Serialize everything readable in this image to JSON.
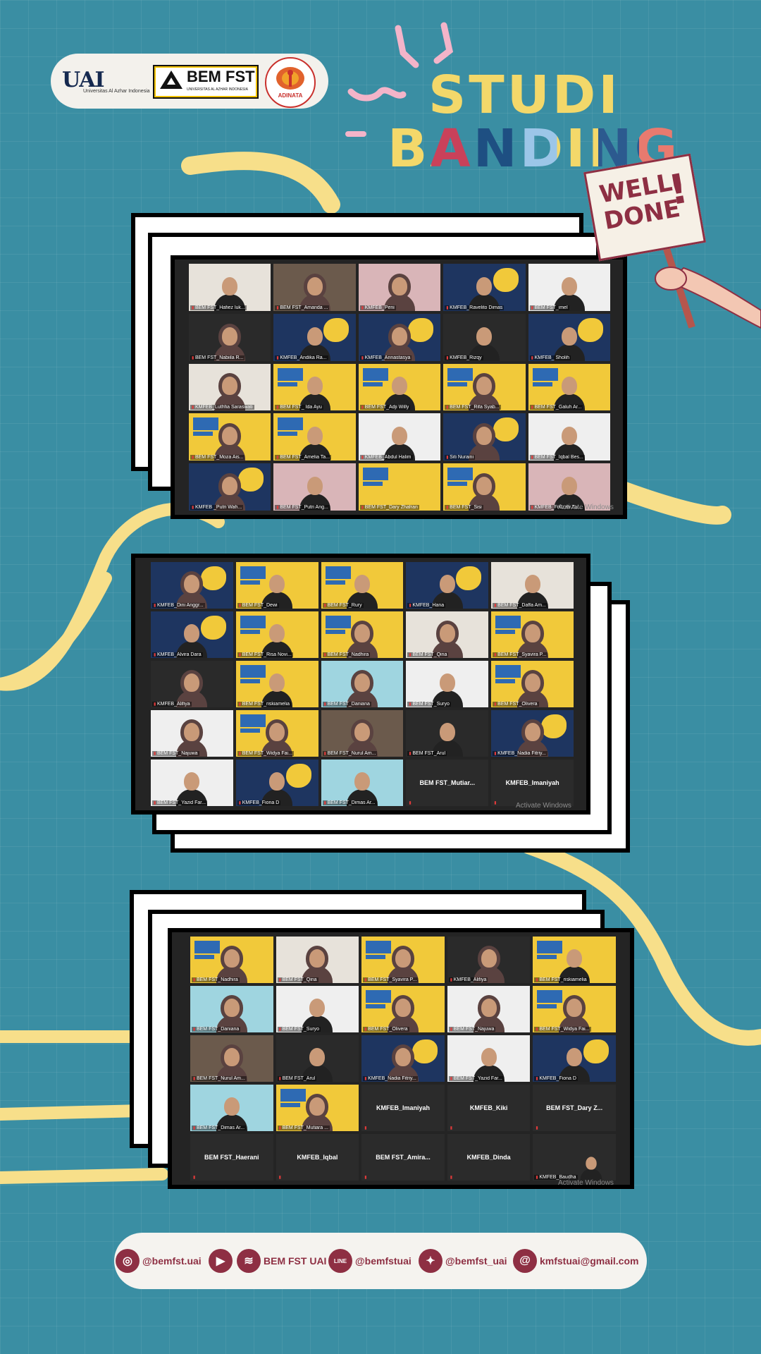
{
  "logos": {
    "uai_mark": "UAI",
    "uai_sub": "Universitas Al Azhar Indonesia",
    "bem_text": "BEM FST",
    "bem_sub": "UNIVERSITAS AL AZHAR INDONESIA",
    "adinata": "ADINATA"
  },
  "title": {
    "line1": "STUDI",
    "line2": "BANDING"
  },
  "sign": {
    "line1": "WELL",
    "line2": "DONE",
    "mark": "!"
  },
  "colors": {
    "background": "#3a8ea3",
    "accent": "#8e2f43",
    "squiggle": "#f7df8a",
    "tile_yellow": "#f1c93a"
  },
  "screens": [
    {
      "activate": "Activate Windows",
      "tiles": [
        {
          "name": "BEM FST_Hafiez luk...",
          "style": "light",
          "person": "plain"
        },
        {
          "name": "BEM FST_Amanda ...",
          "style": "brown",
          "person": "hijab"
        },
        {
          "name": "KMFEB_Peni",
          "style": "pink",
          "person": "hijab"
        },
        {
          "name": "KMFEB_Ravelito Dimas",
          "style": "navy",
          "person": "plain"
        },
        {
          "name": "BEM FST_imel",
          "style": "white",
          "person": "plain"
        },
        {
          "name": "BEM FST_Nabiila R...",
          "style": "dark",
          "person": "hijab"
        },
        {
          "name": "KMFEB_Andika Ra...",
          "style": "navy",
          "person": "plain"
        },
        {
          "name": "KMFEB_Annastasya",
          "style": "navy",
          "person": "hijab"
        },
        {
          "name": "KMFEB_Rizqy",
          "style": "dark",
          "person": "plain"
        },
        {
          "name": "KMFEB_ Sholih",
          "style": "navy",
          "person": "plain"
        },
        {
          "name": "KMFEB_Luthfia Saraswati",
          "style": "light",
          "person": "hijab"
        },
        {
          "name": "BEM FST_ Ida Ayu",
          "style": "yellow",
          "person": "plain"
        },
        {
          "name": "BEM FST_Adji Willy",
          "style": "yellow",
          "person": "plain"
        },
        {
          "name": "BEM FST_Rifa Syab...",
          "style": "yellow",
          "person": "hijab"
        },
        {
          "name": "BEM FST_Galuh Ar...",
          "style": "yellow",
          "person": "plain"
        },
        {
          "name": "BEM FST_Moza Ais...",
          "style": "yellow",
          "person": "hijab"
        },
        {
          "name": "BEM FST_Amelia Ta...",
          "style": "yellow",
          "person": "plain"
        },
        {
          "name": "KMFEB_Abdul Halim",
          "style": "white",
          "person": "plain"
        },
        {
          "name": "Siti Nuraini",
          "style": "navy",
          "person": "hijab"
        },
        {
          "name": "BEM FST_Iqbal Bes...",
          "style": "white",
          "person": "plain"
        },
        {
          "name": "KMFEB _Putri Wah...",
          "style": "navy",
          "person": "hijab"
        },
        {
          "name": "BEM FST_Putri Ang...",
          "style": "pink",
          "person": "plain"
        },
        {
          "name": "BEM FST_Dary Zhafran",
          "style": "yellow",
          "person": "none"
        },
        {
          "name": "BEM FST_Sisi",
          "style": "yellow",
          "person": "hijab"
        },
        {
          "name": "KMFEB_Fildzah Zar...",
          "style": "pink",
          "person": "plain"
        }
      ]
    },
    {
      "activate": "Activate Windows",
      "tiles": [
        {
          "name": "KMFEB_Dini Anggr...",
          "style": "navy",
          "person": "hijab"
        },
        {
          "name": "BEM FST_Dewi",
          "style": "yellow",
          "person": "plain"
        },
        {
          "name": "BEM FST_Rury",
          "style": "yellow",
          "person": "plain"
        },
        {
          "name": "KMFEB_Hana",
          "style": "navy",
          "person": "plain"
        },
        {
          "name": "BEM FST_Daffa Am...",
          "style": "light",
          "person": "plain"
        },
        {
          "name": "KMFEB_Alvira Dara",
          "style": "navy",
          "person": "plain"
        },
        {
          "name": "BEM FST_Risa Novi...",
          "style": "yellow",
          "person": "plain"
        },
        {
          "name": "BEM FST_Nadhira",
          "style": "yellow",
          "person": "hijab"
        },
        {
          "name": "BEM FST_Qina",
          "style": "light",
          "person": "hijab"
        },
        {
          "name": "BEM FST_Syavira P...",
          "style": "yellow",
          "person": "hijab"
        },
        {
          "name": "KMFEB_Alifiya",
          "style": "dark",
          "person": "hijab"
        },
        {
          "name": "BEM FST_riskiamelia",
          "style": "yellow",
          "person": "plain"
        },
        {
          "name": "BEM FST_Daniana",
          "style": "sky",
          "person": "hijab"
        },
        {
          "name": "BEM FST_Suryo",
          "style": "white",
          "person": "plain"
        },
        {
          "name": "BEM FST_Olivera",
          "style": "yellow",
          "person": "hijab"
        },
        {
          "name": "BEM FST_Najuwa",
          "style": "white",
          "person": "hijab"
        },
        {
          "name": "BEM FST_Widya Fai...",
          "style": "yellow",
          "person": "hijab"
        },
        {
          "name": "BEM FST_Nurul Am...",
          "style": "brown",
          "person": "hijab"
        },
        {
          "name": "BEM FST_Arul",
          "style": "dark",
          "person": "plain"
        },
        {
          "name": "KMFEB_Nadia Fitriy...",
          "style": "navy",
          "person": "hijab"
        },
        {
          "name": "BEM FST_Yazid Far...",
          "style": "white",
          "person": "plain"
        },
        {
          "name": "KMFEB_Fiona D",
          "style": "navy",
          "person": "plain"
        },
        {
          "name": "BEM FST_Dimas Ar...",
          "style": "sky",
          "person": "plain"
        },
        {
          "name": "BEM FST_Mutiar...",
          "style": "empty",
          "person": "none",
          "center": true
        },
        {
          "name": "KMFEB_Imaniyah",
          "style": "empty",
          "person": "none",
          "center": true
        }
      ]
    },
    {
      "activate": "Activate Windows",
      "tiles": [
        {
          "name": "BEM FST_Nadhira",
          "style": "yellow",
          "person": "hijab"
        },
        {
          "name": "BEM FST_Qina",
          "style": "light",
          "person": "hijab"
        },
        {
          "name": "BEM FST_Syavira P...",
          "style": "yellow",
          "person": "hijab"
        },
        {
          "name": "KMFEB_Alifiya",
          "style": "dark",
          "person": "hijab"
        },
        {
          "name": "BEM FST_riskiamelia",
          "style": "yellow",
          "person": "plain"
        },
        {
          "name": "BEM FST_Daniana",
          "style": "sky",
          "person": "hijab"
        },
        {
          "name": "BEM FST_Suryo",
          "style": "white",
          "person": "plain"
        },
        {
          "name": "BEM FST_Olivera",
          "style": "yellow",
          "person": "hijab"
        },
        {
          "name": "BEM FST_Najuwa",
          "style": "white",
          "person": "hijab"
        },
        {
          "name": "BEM FST_Widya Fai...",
          "style": "yellow",
          "person": "hijab"
        },
        {
          "name": "BEM FST_Nurul Am...",
          "style": "brown",
          "person": "hijab"
        },
        {
          "name": "BEM FST_Arul",
          "style": "dark",
          "person": "plain"
        },
        {
          "name": "KMFEB_Nadia Fitriy...",
          "style": "navy",
          "person": "hijab"
        },
        {
          "name": "BEM FST_Yazid Far...",
          "style": "white",
          "person": "plain"
        },
        {
          "name": "KMFEB_Fiona D",
          "style": "navy",
          "person": "plain"
        },
        {
          "name": "BEM FST_Dimas Ar...",
          "style": "sky",
          "person": "plain"
        },
        {
          "name": "BEM FST_Mutiara ...",
          "style": "yellow",
          "person": "hijab"
        },
        {
          "name": "KMFEB_Imaniyah",
          "style": "empty",
          "person": "none",
          "center": true
        },
        {
          "name": "KMFEB_Kiki",
          "style": "empty",
          "person": "none",
          "center": true
        },
        {
          "name": "BEM FST_Dary Z...",
          "style": "empty",
          "person": "none",
          "center": true
        },
        {
          "name": "BEM FST_Haerani",
          "style": "empty",
          "person": "none",
          "center": true
        },
        {
          "name": "KMFEB_Iqbal",
          "style": "empty",
          "person": "none",
          "center": true
        },
        {
          "name": "BEM FST_Amira...",
          "style": "empty",
          "person": "none",
          "center": true
        },
        {
          "name": "KMFEB_Dinda",
          "style": "empty",
          "person": "none",
          "center": true
        },
        {
          "name": "KMFEB_Baudha",
          "style": "empty",
          "person": "small"
        }
      ]
    }
  ],
  "footer": [
    {
      "icon": "instagram-icon",
      "glyph": "◎",
      "text": "@bemfst.uai"
    },
    {
      "icon": "youtube-icon",
      "glyph": "▶",
      "text": ""
    },
    {
      "icon": "spotify-icon",
      "glyph": "≋",
      "text": "BEM FST UAI"
    },
    {
      "icon": "line-icon",
      "glyph": "LINE",
      "text": "@bemfstuai"
    },
    {
      "icon": "twitter-icon",
      "glyph": "✦",
      "text": "@bemfst_uai"
    },
    {
      "icon": "email-icon",
      "glyph": "@",
      "text": "kmfstuai@gmail.com"
    }
  ]
}
